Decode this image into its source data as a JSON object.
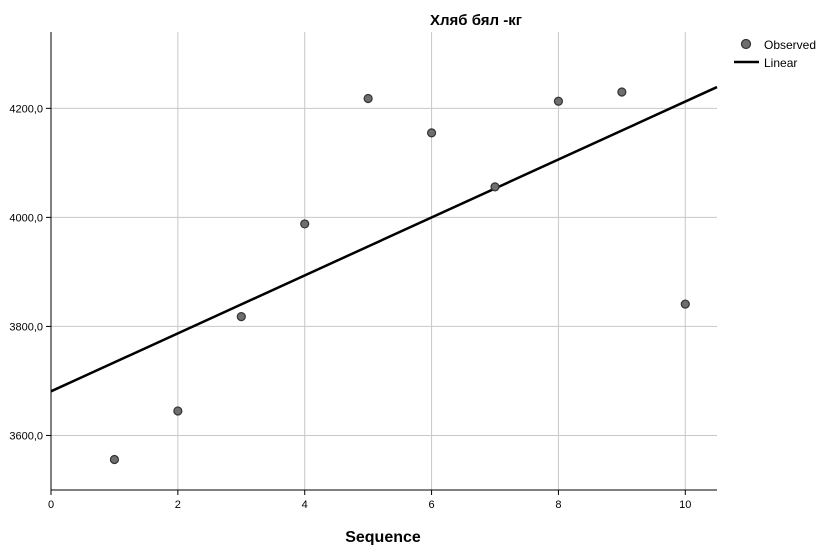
{
  "chart_data": {
    "type": "scatter",
    "title": "Хляб бял -кг",
    "xlabel": "Sequence",
    "ylabel": "",
    "xlim": [
      0,
      10.5
    ],
    "ylim": [
      3500,
      4340
    ],
    "xticks": [
      0,
      2,
      4,
      6,
      8,
      10
    ],
    "xtick_labels": [
      "0",
      "2",
      "4",
      "6",
      "8",
      "10"
    ],
    "yticks": [
      3600,
      3800,
      4000,
      4200
    ],
    "ytick_labels": [
      "3600,0",
      "3800,0",
      "4000,0",
      "4200,0"
    ],
    "grid": true,
    "legend_position": "top-right",
    "series": [
      {
        "name": "Observed",
        "type": "scatter",
        "color": "#6e6e6e",
        "x": [
          1,
          2,
          3,
          4,
          5,
          6,
          7,
          8,
          9,
          10
        ],
        "y": [
          3556,
          3645,
          3818,
          3988,
          4218,
          4155,
          4056,
          4213,
          4230,
          3841
        ]
      },
      {
        "name": "Linear",
        "type": "line",
        "color": "#000000",
        "x": [
          0,
          10.5
        ],
        "y": [
          3681,
          4239
        ]
      }
    ]
  }
}
